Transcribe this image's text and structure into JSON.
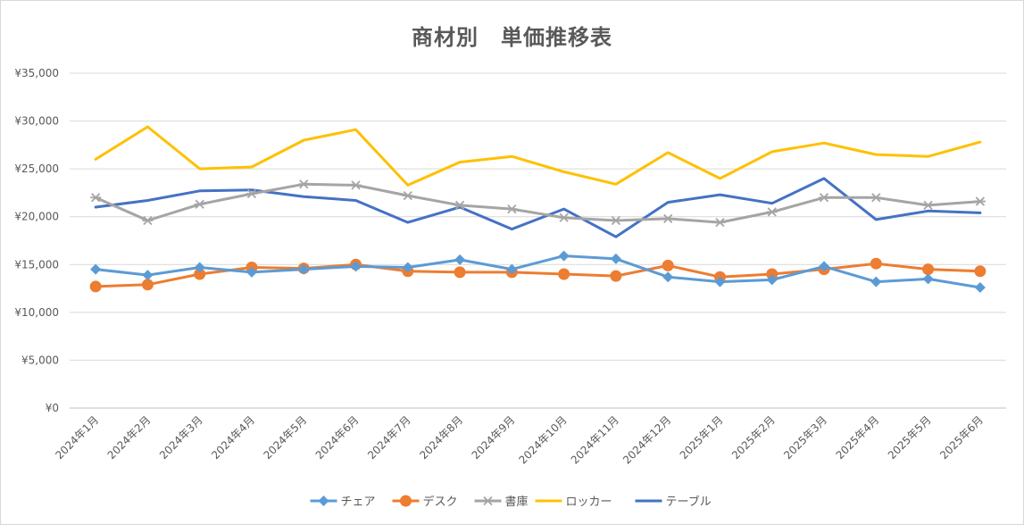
{
  "chart_data": {
    "type": "line",
    "title": "商材別　単価推移表",
    "xlabel": "",
    "ylabel": "",
    "ylim": [
      0,
      35000
    ],
    "yticks": [
      0,
      5000,
      10000,
      15000,
      20000,
      25000,
      30000,
      35000
    ],
    "ytick_labels": [
      "¥0",
      "¥5,000",
      "¥10,000",
      "¥15,000",
      "¥20,000",
      "¥25,000",
      "¥30,000",
      "¥35,000"
    ],
    "grid": true,
    "legend_position": "bottom",
    "categories": [
      "2024年1月",
      "2024年2月",
      "2024年3月",
      "2024年4月",
      "2024年5月",
      "2024年6月",
      "2024年7月",
      "2024年8月",
      "2024年9月",
      "2024年10月",
      "2024年11月",
      "2024年12月",
      "2025年1月",
      "2025年2月",
      "2025年3月",
      "2025年4月",
      "2025年5月",
      "2025年6月"
    ],
    "series": [
      {
        "name": "チェア",
        "color": "#5b9bd5",
        "marker": "diamond",
        "values": [
          14500,
          13900,
          14700,
          14200,
          14500,
          14800,
          14700,
          15500,
          14500,
          15900,
          15600,
          13700,
          13200,
          13400,
          14800,
          13200,
          13500,
          12600
        ]
      },
      {
        "name": "デスク",
        "color": "#ed7d31",
        "marker": "circle",
        "values": [
          12700,
          12900,
          14000,
          14700,
          14600,
          15000,
          14300,
          14200,
          14200,
          14000,
          13800,
          14900,
          13700,
          14000,
          14500,
          15100,
          14500,
          14300
        ]
      },
      {
        "name": "書庫",
        "color": "#a5a5a5",
        "marker": "star",
        "values": [
          22000,
          19600,
          21300,
          22400,
          23400,
          23300,
          22200,
          21200,
          20800,
          19900,
          19600,
          19800,
          19400,
          20500,
          22000,
          22000,
          21200,
          21600
        ]
      },
      {
        "name": "ロッカー",
        "color": "#ffc000",
        "marker": "none",
        "values": [
          26000,
          29400,
          25000,
          25200,
          28000,
          29100,
          23300,
          25700,
          26300,
          24700,
          23400,
          26700,
          24000,
          26800,
          27700,
          26500,
          26300,
          27800
        ]
      },
      {
        "name": "テーブル",
        "color": "#4472c4",
        "marker": "none",
        "values": [
          21000,
          21700,
          22700,
          22800,
          22100,
          21700,
          19400,
          21000,
          18700,
          20800,
          17900,
          21500,
          22300,
          21400,
          24000,
          19700,
          20600,
          20400
        ]
      }
    ]
  }
}
